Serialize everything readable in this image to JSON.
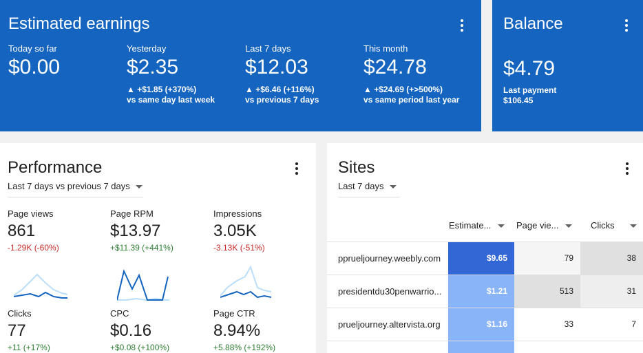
{
  "earnings": {
    "title": "Estimated earnings",
    "metrics": [
      {
        "label": "Today so far",
        "value": "$0.00",
        "change": "",
        "compare": ""
      },
      {
        "label": "Yesterday",
        "value": "$2.35",
        "change": "▲ +$1.85 (+370%)",
        "compare": "vs same day last week"
      },
      {
        "label": "Last 7 days",
        "value": "$12.03",
        "change": "▲ +$6.46 (+116%)",
        "compare": "vs previous 7 days"
      },
      {
        "label": "This month",
        "value": "$24.78",
        "change": "▲ +$24.69 (+>500%)",
        "compare": "vs same period last year"
      }
    ]
  },
  "balance": {
    "title": "Balance",
    "value": "$4.79",
    "last_payment_label": "Last payment",
    "last_payment_value": "$106.45"
  },
  "performance": {
    "title": "Performance",
    "range": "Last 7 days vs previous 7 days",
    "metrics": [
      {
        "label": "Page views",
        "value": "861",
        "change": "-1.29K (-60%)",
        "trend": "neg"
      },
      {
        "label": "Page RPM",
        "value": "$13.97",
        "change": "+$11.39 (+441%)",
        "trend": "pos"
      },
      {
        "label": "Impressions",
        "value": "3.05K",
        "change": "-3.13K (-51%)",
        "trend": "neg"
      },
      {
        "label": "Clicks",
        "value": "77",
        "change": "+11 (+17%)",
        "trend": "pos"
      },
      {
        "label": "CPC",
        "value": "$0.16",
        "change": "+$0.08 (+100%)",
        "trend": "pos"
      },
      {
        "label": "Page CTR",
        "value": "8.94%",
        "change": "+5.88% (+192%)",
        "trend": "pos"
      }
    ]
  },
  "sites": {
    "title": "Sites",
    "range": "Last 7 days",
    "columns": [
      "Estimate...",
      "Page vie...",
      "Clicks"
    ],
    "rows": [
      {
        "site": "pprueljourney.weebly.com",
        "earnings": "$9.65",
        "pageviews": "79",
        "clicks": "38"
      },
      {
        "site": "presidentdu30penwarrio...",
        "earnings": "$1.21",
        "pageviews": "513",
        "clicks": "31"
      },
      {
        "site": "prueljourney.altervista.org",
        "earnings": "$1.16",
        "pageviews": "33",
        "clicks": "7"
      }
    ]
  },
  "colors": {
    "primary": "#1565c0",
    "negative": "#c62828",
    "positive": "#2e7d32",
    "heat_strong": "#3367d6",
    "heat_light": "#8ab4f8",
    "cell_grey": "#e0e0e0"
  }
}
